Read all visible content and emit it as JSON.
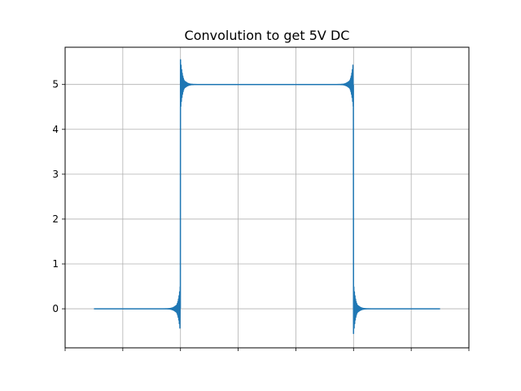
{
  "chart_data": {
    "type": "line",
    "title": "Convolution to get 5V DC",
    "xlabel": "",
    "ylabel": "",
    "xlim": [
      -0.2,
      1.2
    ],
    "ylim": [
      -0.87,
      5.83
    ],
    "yticks": [
      0,
      1,
      2,
      3,
      4,
      5
    ],
    "ytick_labels": [
      "0",
      "1",
      "2",
      "3",
      "4",
      "5"
    ],
    "xticks": [
      -0.2,
      0.0,
      0.2,
      0.4,
      0.6,
      0.8,
      1.0,
      1.2
    ],
    "xtick_labels_visible": false,
    "grid": true,
    "series": [
      {
        "color": "#1f77b4",
        "x_start": -0.1,
        "x_end": 1.1,
        "step_on": 0.2,
        "step_off": 0.8,
        "level_low": 0,
        "level_high": 5,
        "overshoot_max": 5.55,
        "undershoot_min": -0.55
      }
    ]
  }
}
